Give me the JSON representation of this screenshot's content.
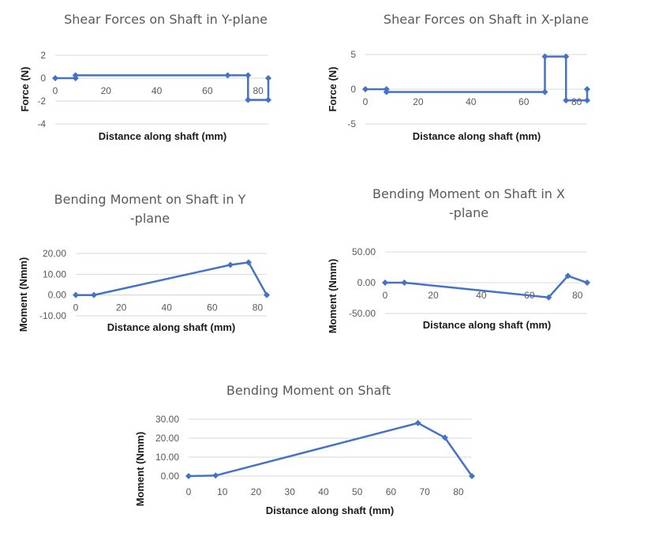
{
  "colors": {
    "series": "#4472c4",
    "grid": "#d9d9d9",
    "text": "#595959"
  },
  "chart_data": [
    {
      "type": "line",
      "title": "Shear Forces on Shaft in Y-plane",
      "xlabel": "Distance along shaft (mm)",
      "ylabel": "Force (N)",
      "xlim": [
        0,
        84
      ],
      "ylim": [
        -4,
        2
      ],
      "xticks": [
        "0",
        "20",
        "40",
        "60",
        "80"
      ],
      "yticks": [
        "-4",
        "-2",
        "0",
        "2"
      ],
      "x_tick_values": [
        0,
        20,
        40,
        60,
        80
      ],
      "y_tick_values": [
        -4,
        -2,
        0,
        2
      ],
      "xaxis_at": 0,
      "grid": true,
      "series": [
        {
          "points": [
            [
              0,
              0
            ],
            [
              8,
              0
            ],
            [
              8,
              0.25
            ],
            [
              68,
              0.25
            ],
            [
              76,
              0.25
            ],
            [
              76,
              -1.9
            ],
            [
              84,
              -1.9
            ],
            [
              84,
              0
            ]
          ]
        }
      ]
    },
    {
      "type": "line",
      "title": "Shear Forces on Shaft in X-plane",
      "xlabel": "Distance along shaft (mm)",
      "ylabel": "Force (N)",
      "xlim": [
        0,
        84
      ],
      "ylim": [
        -5,
        5
      ],
      "xticks": [
        "0",
        "20",
        "40",
        "60",
        "80"
      ],
      "yticks": [
        "-5",
        "0",
        "5"
      ],
      "x_tick_values": [
        0,
        20,
        40,
        60,
        80
      ],
      "y_tick_values": [
        -5,
        0,
        5
      ],
      "xaxis_at": 0,
      "grid": true,
      "series": [
        {
          "points": [
            [
              0,
              0
            ],
            [
              8,
              0
            ],
            [
              8,
              -0.4
            ],
            [
              68,
              -0.4
            ],
            [
              68,
              4.7
            ],
            [
              76,
              4.7
            ],
            [
              76,
              -1.6
            ],
            [
              84,
              -1.6
            ],
            [
              84,
              0
            ]
          ]
        }
      ]
    },
    {
      "type": "line",
      "title": "Bending Moment on Shaft in Y-plane",
      "xlabel": "Distance along shaft (mm)",
      "ylabel": "Moment (Nmm)",
      "xlim": [
        0,
        84
      ],
      "ylim": [
        -10,
        20
      ],
      "xticks": [
        "0",
        "20",
        "40",
        "60",
        "80"
      ],
      "yticks": [
        "-10.00",
        "0.00",
        "10.00",
        "20.00"
      ],
      "x_tick_values": [
        0,
        20,
        40,
        60,
        80
      ],
      "y_tick_values": [
        -10,
        0,
        10,
        20
      ],
      "xaxis_at": 0,
      "grid": true,
      "series": [
        {
          "points": [
            [
              0,
              0
            ],
            [
              8,
              0
            ],
            [
              68,
              14.5
            ],
            [
              76,
              15.7
            ],
            [
              84,
              0
            ]
          ]
        }
      ]
    },
    {
      "type": "line",
      "title": "Bending Moment on Shaft in X-plane",
      "xlabel": "Distance along shaft (mm)",
      "ylabel": "Moment (Nmm)",
      "xlim": [
        0,
        84
      ],
      "ylim": [
        -50,
        50
      ],
      "xticks": [
        "0",
        "20",
        "40",
        "60",
        "80"
      ],
      "yticks": [
        "-50.00",
        "0.00",
        "50.00"
      ],
      "x_tick_values": [
        0,
        20,
        40,
        60,
        80
      ],
      "y_tick_values": [
        -50,
        0,
        50
      ],
      "xaxis_at": 0,
      "grid": true,
      "series": [
        {
          "points": [
            [
              0,
              0
            ],
            [
              8,
              0
            ],
            [
              68,
              -24
            ],
            [
              76,
              11
            ],
            [
              84,
              0
            ]
          ]
        }
      ]
    },
    {
      "type": "line",
      "title": "Bending Moment on Shaft",
      "xlabel": "Distance along shaft (mm)",
      "ylabel": "Moment  (Nmm)",
      "xlim": [
        0,
        84
      ],
      "ylim": [
        0,
        30
      ],
      "xticks": [
        "0",
        "10",
        "20",
        "30",
        "40",
        "50",
        "60",
        "70",
        "80"
      ],
      "yticks": [
        "0.00",
        "10.00",
        "20.00",
        "30.00"
      ],
      "x_tick_values": [
        0,
        10,
        20,
        30,
        40,
        50,
        60,
        70,
        80
      ],
      "y_tick_values": [
        0,
        10,
        20,
        30
      ],
      "xaxis_at": "bottom",
      "grid": true,
      "series": [
        {
          "points": [
            [
              0,
              0
            ],
            [
              8,
              0.3
            ],
            [
              68,
              28
            ],
            [
              76,
              20.3
            ],
            [
              84,
              0
            ]
          ]
        }
      ]
    }
  ]
}
